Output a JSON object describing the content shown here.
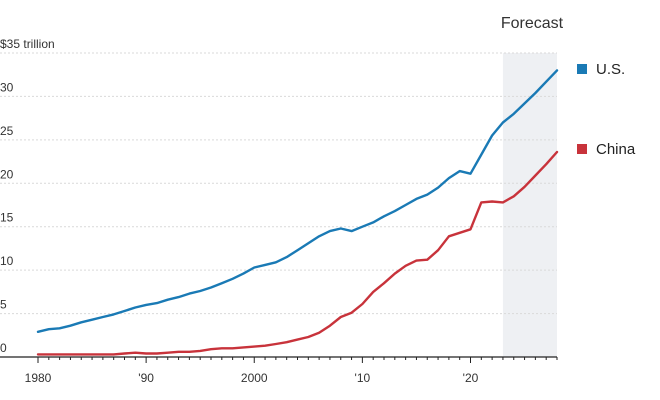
{
  "chart_data": {
    "type": "line",
    "title": "",
    "xlabel": "",
    "ylabel": "",
    "xlim": [
      1980,
      2028
    ],
    "ylim": [
      0,
      35
    ],
    "grid": true,
    "legend_position": "right",
    "forecast": {
      "label": "Forecast",
      "start": 2023,
      "end": 2028,
      "color": "#eef0f3"
    },
    "y_ticks": [
      0,
      5,
      10,
      15,
      20,
      25,
      30,
      35
    ],
    "y_tick_labels": [
      "0",
      "5",
      "10",
      "15",
      "20",
      "25",
      "30",
      "$35 trillion"
    ],
    "x_ticks": [
      1980,
      1990,
      2000,
      2010,
      2020
    ],
    "x_tick_labels": [
      "1980",
      "'90",
      "2000",
      "'10",
      "'20"
    ],
    "series": [
      {
        "name": "U.S.",
        "color": "#1a7ab5",
        "x": [
          1980,
          1981,
          1982,
          1983,
          1984,
          1985,
          1986,
          1987,
          1988,
          1989,
          1990,
          1991,
          1992,
          1993,
          1994,
          1995,
          1996,
          1997,
          1998,
          1999,
          2000,
          2001,
          2002,
          2003,
          2004,
          2005,
          2006,
          2007,
          2008,
          2009,
          2010,
          2011,
          2012,
          2013,
          2014,
          2015,
          2016,
          2017,
          2018,
          2019,
          2020,
          2021,
          2022,
          2023,
          2024,
          2025,
          2026,
          2027,
          2028
        ],
        "values": [
          2.9,
          3.2,
          3.3,
          3.6,
          4.0,
          4.3,
          4.6,
          4.9,
          5.3,
          5.7,
          6.0,
          6.2,
          6.6,
          6.9,
          7.3,
          7.6,
          8.0,
          8.5,
          9.0,
          9.6,
          10.3,
          10.6,
          10.9,
          11.5,
          12.3,
          13.1,
          13.9,
          14.5,
          14.8,
          14.5,
          15.0,
          15.5,
          16.2,
          16.8,
          17.5,
          18.2,
          18.7,
          19.5,
          20.6,
          21.4,
          21.1,
          23.3,
          25.5,
          27.0,
          28.0,
          29.2,
          30.4,
          31.7,
          33.0
        ]
      },
      {
        "name": "China",
        "color": "#c8333b",
        "x": [
          1980,
          1981,
          1982,
          1983,
          1984,
          1985,
          1986,
          1987,
          1988,
          1989,
          1990,
          1991,
          1992,
          1993,
          1994,
          1995,
          1996,
          1997,
          1998,
          1999,
          2000,
          2001,
          2002,
          2003,
          2004,
          2005,
          2006,
          2007,
          2008,
          2009,
          2010,
          2011,
          2012,
          2013,
          2014,
          2015,
          2016,
          2017,
          2018,
          2019,
          2020,
          2021,
          2022,
          2023,
          2024,
          2025,
          2026,
          2027,
          2028
        ],
        "values": [
          0.3,
          0.3,
          0.3,
          0.3,
          0.3,
          0.3,
          0.3,
          0.3,
          0.4,
          0.5,
          0.4,
          0.4,
          0.5,
          0.6,
          0.6,
          0.7,
          0.9,
          1.0,
          1.0,
          1.1,
          1.2,
          1.3,
          1.5,
          1.7,
          2.0,
          2.3,
          2.8,
          3.6,
          4.6,
          5.1,
          6.1,
          7.5,
          8.5,
          9.6,
          10.5,
          11.1,
          11.2,
          12.3,
          13.9,
          14.3,
          14.7,
          17.8,
          17.9,
          17.8,
          18.5,
          19.6,
          20.9,
          22.2,
          23.6
        ]
      }
    ]
  }
}
